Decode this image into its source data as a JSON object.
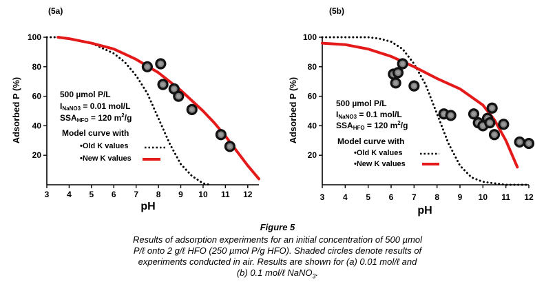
{
  "chart_data": [
    {
      "type": "scatter",
      "panel_label": "(5a)",
      "xlabel": "pH",
      "ylabel": "Adsorbed P (%)",
      "xlim": [
        3,
        12.5
      ],
      "ylim": [
        0,
        100
      ],
      "xticks": [
        3,
        4,
        5,
        6,
        7,
        8,
        9,
        10,
        11,
        12
      ],
      "yticks": [
        20,
        40,
        60,
        80,
        100
      ],
      "annotations": {
        "conc": "500 µmol P/L",
        "ionic_prefix": "I",
        "ionic_sub": "NaNO3",
        "ionic_value": " = 0.01 mol/L",
        "ssa_prefix": "SSA",
        "ssa_sub": "HFO",
        "ssa_value": " = 120 m",
        "ssa_sup": "2",
        "ssa_unit": "/g"
      },
      "legend": {
        "title_line1": "Model curve with",
        "old_label": "•Old K values",
        "new_label": "•New K values"
      },
      "points": [
        {
          "x": 7.5,
          "y": 80
        },
        {
          "x": 8.1,
          "y": 82
        },
        {
          "x": 8.2,
          "y": 68
        },
        {
          "x": 8.7,
          "y": 65
        },
        {
          "x": 8.9,
          "y": 60
        },
        {
          "x": 9.5,
          "y": 51
        },
        {
          "x": 10.8,
          "y": 34
        },
        {
          "x": 11.2,
          "y": 26
        }
      ],
      "series": [
        {
          "name": "New K values",
          "style": "solid",
          "color": "#e41a1a",
          "x": [
            3.5,
            4,
            5,
            6,
            7,
            8,
            9,
            10,
            10.5,
            11,
            11.5,
            12,
            12.5
          ],
          "y": [
            100,
            99,
            96,
            92,
            85,
            76,
            64,
            50,
            42,
            33,
            23,
            13,
            4
          ]
        },
        {
          "name": "Old K values",
          "style": "dotted",
          "color": "#000000",
          "x": [
            3,
            3.5,
            4,
            5,
            6,
            6.5,
            7,
            7.5,
            8,
            8.5,
            9,
            9.5,
            10,
            10.3
          ],
          "y": [
            100,
            100,
            99,
            96,
            89,
            83,
            74,
            62,
            45,
            28,
            14,
            6,
            1,
            0
          ]
        }
      ]
    },
    {
      "type": "scatter",
      "panel_label": "(5b)",
      "xlabel": "pH",
      "ylabel": "Adsorbed P (%)",
      "xlim": [
        3,
        12
      ],
      "ylim": [
        0,
        100
      ],
      "xticks": [
        3,
        4,
        5,
        6,
        7,
        8,
        9,
        10,
        11,
        12
      ],
      "yticks": [
        20,
        40,
        60,
        80,
        100
      ],
      "annotations": {
        "conc": "500 µmol P/L",
        "ionic_prefix": "I",
        "ionic_sub": "NaNO3",
        "ionic_value": " = 0.1 mol/L",
        "ssa_prefix": "SSA",
        "ssa_sub": "HFO",
        "ssa_value": " = 120 m",
        "ssa_sup": "2",
        "ssa_unit": "/g"
      },
      "legend": {
        "title_line1": "Model curve with",
        "old_label": "•Old K values",
        "new_label": "•New K values"
      },
      "points": [
        {
          "x": 6.1,
          "y": 75
        },
        {
          "x": 6.3,
          "y": 76
        },
        {
          "x": 6.2,
          "y": 69
        },
        {
          "x": 6.5,
          "y": 82
        },
        {
          "x": 7.0,
          "y": 67
        },
        {
          "x": 8.3,
          "y": 48
        },
        {
          "x": 8.6,
          "y": 47
        },
        {
          "x": 9.6,
          "y": 48
        },
        {
          "x": 9.8,
          "y": 42
        },
        {
          "x": 10.0,
          "y": 40
        },
        {
          "x": 10.2,
          "y": 45
        },
        {
          "x": 10.3,
          "y": 42
        },
        {
          "x": 10.4,
          "y": 52
        },
        {
          "x": 10.5,
          "y": 34
        },
        {
          "x": 10.9,
          "y": 41
        },
        {
          "x": 11.6,
          "y": 29
        },
        {
          "x": 12.0,
          "y": 28
        }
      ],
      "series": [
        {
          "name": "New K values",
          "style": "solid",
          "color": "#e41a1a",
          "x": [
            3,
            4,
            5,
            6,
            7,
            8,
            9,
            10,
            10.5,
            11,
            11.5
          ],
          "y": [
            96,
            95,
            92,
            87,
            80,
            72,
            65,
            54,
            44,
            30,
            12
          ]
        },
        {
          "name": "Old K values",
          "style": "dotted",
          "color": "#000000",
          "x": [
            3,
            4,
            5,
            5.5,
            6,
            6.5,
            7,
            7.5,
            8,
            8.5,
            9,
            9.5,
            10,
            10.5,
            11,
            12
          ],
          "y": [
            100,
            100,
            100,
            99,
            97,
            92,
            82,
            68,
            48,
            28,
            13,
            5,
            2,
            1,
            0,
            0
          ]
        }
      ]
    }
  ],
  "caption": {
    "title": "Figure 5",
    "line1": "Results of adsorption experiments for an initial concentration of 500 µmol",
    "line2": "P/ℓ onto 2 g/ℓ HFO (250 µmol P/g HFO). Shaded circles denote results of",
    "line3": "experiments conducted in air. Results are shown for (a) 0.01 mol/ℓ and",
    "line4_text": "(b) 0.1 mol/ℓ NaNO",
    "line4_sub": "3",
    "line4_end": "."
  }
}
